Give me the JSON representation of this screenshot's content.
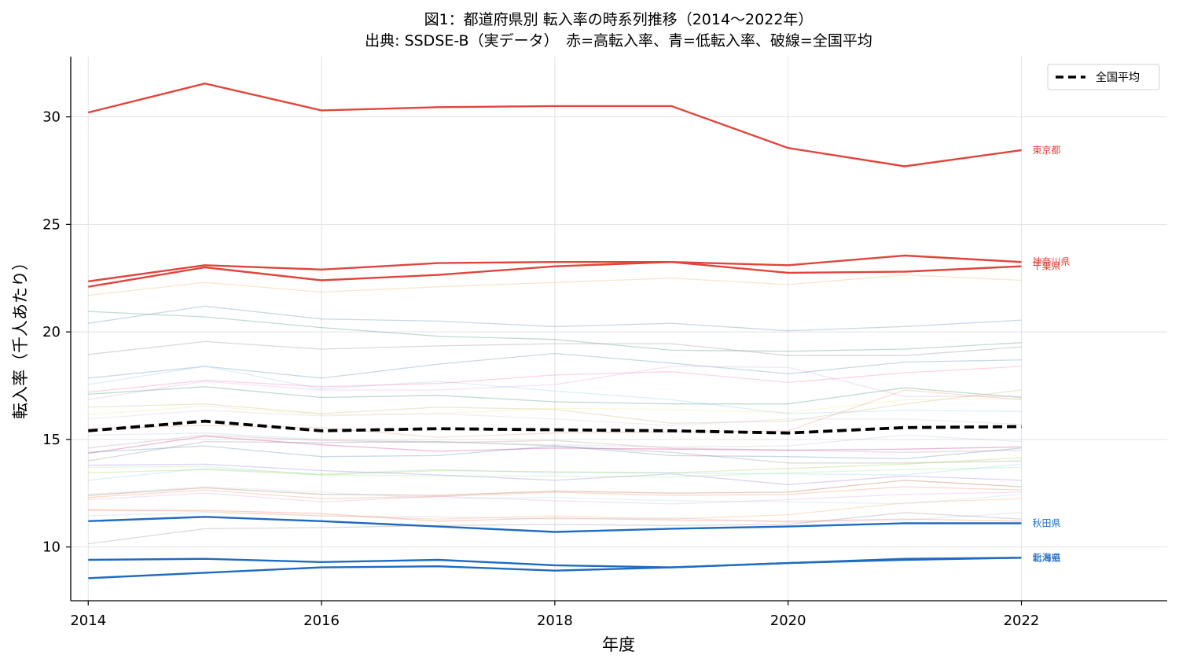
{
  "chart_data": {
    "type": "line",
    "title": "図1：都道府県別 転入率の時系列推移（2014〜2022年）",
    "subtitle": "出典: SSDSE-B（実データ）　赤=高転入率、青=低転入率、破線=全国平均",
    "xlabel": "年度",
    "ylabel": "転入率（千人あたり）",
    "x": [
      2014,
      2015,
      2016,
      2017,
      2018,
      2019,
      2020,
      2021,
      2022
    ],
    "xlim": [
      2013.85,
      2023.25
    ],
    "ylim": [
      7.5,
      32.8
    ],
    "xticks": [
      2014,
      2016,
      2018,
      2020,
      2022
    ],
    "yticks": [
      10,
      15,
      20,
      25,
      30
    ],
    "grid": true,
    "legend": {
      "position": "top-right",
      "entries": [
        {
          "label": "全国平均",
          "style": "dashed",
          "color": "#000000"
        }
      ]
    },
    "colors": {
      "high": "#e0453c",
      "low": "#1f6bc1",
      "average": "#000000"
    },
    "highlight_series": [
      {
        "name": "東京都",
        "group": "high",
        "values": [
          30.2,
          31.55,
          30.3,
          30.45,
          30.5,
          30.5,
          28.55,
          27.7,
          28.45
        ]
      },
      {
        "name": "神奈川県",
        "group": "high",
        "values": [
          22.35,
          23.1,
          22.9,
          23.2,
          23.25,
          23.25,
          23.1,
          23.55,
          23.25
        ]
      },
      {
        "name": "千葉県",
        "group": "high",
        "values": [
          22.1,
          23.0,
          22.4,
          22.65,
          23.05,
          23.25,
          22.75,
          22.8,
          23.05
        ]
      },
      {
        "name": "秋田県",
        "group": "low",
        "values": [
          11.2,
          11.4,
          11.2,
          10.95,
          10.7,
          10.85,
          10.95,
          11.1,
          11.1
        ]
      },
      {
        "name": "新潟県",
        "group": "low",
        "values": [
          9.4,
          9.45,
          9.3,
          9.4,
          9.15,
          9.05,
          9.25,
          9.45,
          9.5
        ]
      },
      {
        "name": "北海道",
        "group": "low",
        "values": [
          8.55,
          8.8,
          9.05,
          9.1,
          8.9,
          9.05,
          9.25,
          9.4,
          9.5
        ]
      }
    ],
    "average_series": {
      "name": "全国平均",
      "values": [
        15.4,
        15.85,
        15.4,
        15.5,
        15.45,
        15.4,
        15.3,
        15.55,
        15.6
      ]
    },
    "background_series": [
      {
        "color": "#f4a460",
        "values": [
          21.7,
          22.3,
          21.85,
          22.1,
          22.3,
          22.5,
          22.2,
          22.65,
          22.4
        ]
      },
      {
        "color": "#4682b4",
        "values": [
          20.4,
          21.2,
          20.6,
          20.5,
          20.25,
          20.4,
          20.05,
          20.25,
          20.55
        ]
      },
      {
        "color": "#2e8b57",
        "values": [
          20.95,
          20.7,
          20.2,
          19.8,
          19.65,
          19.15,
          19.1,
          19.2,
          19.5
        ]
      },
      {
        "color": "#808080",
        "values": [
          18.95,
          19.55,
          19.2,
          19.35,
          19.45,
          19.45,
          18.9,
          18.9,
          19.3
        ]
      },
      {
        "color": "#4682b4",
        "values": [
          17.85,
          18.4,
          17.85,
          18.5,
          19.0,
          18.55,
          18.05,
          18.6,
          18.7
        ]
      },
      {
        "color": "#87ceeb",
        "values": [
          17.55,
          18.4,
          17.35,
          17.7,
          17.25,
          16.85,
          16.2,
          16.35,
          16.3
        ]
      },
      {
        "color": "#ff69b4",
        "values": [
          17.2,
          17.75,
          17.45,
          17.6,
          18.0,
          18.15,
          17.65,
          18.1,
          18.4
        ]
      },
      {
        "color": "#2e8b57",
        "values": [
          17.1,
          17.45,
          16.95,
          17.05,
          16.75,
          16.65,
          16.65,
          17.4,
          16.95
        ]
      },
      {
        "color": "#dda0dd",
        "values": [
          16.85,
          17.7,
          17.3,
          17.3,
          17.55,
          18.4,
          18.35,
          17.0,
          17.0
        ]
      },
      {
        "color": "#bdb76b",
        "values": [
          16.5,
          16.65,
          16.2,
          16.5,
          16.4,
          15.75,
          15.85,
          16.65,
          17.3
        ]
      },
      {
        "color": "#f0e68c",
        "values": [
          16.15,
          16.55,
          16.15,
          16.2,
          16.45,
          16.4,
          16.25,
          16.85,
          16.9
        ]
      },
      {
        "color": "#d8bfd8",
        "values": [
          15.95,
          16.35,
          16.1,
          16.2,
          15.95,
          15.65,
          15.95,
          15.95,
          15.7
        ]
      },
      {
        "color": "#e9967a",
        "values": [
          15.5,
          15.65,
          15.55,
          15.1,
          15.3,
          15.35,
          15.4,
          17.3,
          16.85
        ]
      },
      {
        "color": "#b0c4de",
        "values": [
          15.2,
          15.3,
          15.0,
          14.9,
          14.75,
          14.65,
          14.7,
          15.2,
          14.9
        ]
      },
      {
        "color": "#bc8f8f",
        "values": [
          14.6,
          15.2,
          14.95,
          14.85,
          14.95,
          14.6,
          14.5,
          14.4,
          14.5
        ]
      },
      {
        "color": "#c71585",
        "values": [
          14.35,
          15.15,
          14.75,
          14.45,
          14.6,
          14.55,
          14.5,
          14.55,
          14.65
        ]
      },
      {
        "color": "#4682b4",
        "values": [
          14.4,
          14.7,
          14.2,
          14.25,
          14.7,
          14.25,
          14.2,
          14.1,
          14.6
        ]
      },
      {
        "color": "#808080",
        "values": [
          14.0,
          14.9,
          14.85,
          14.9,
          14.7,
          14.4,
          13.9,
          13.9,
          14.0
        ]
      },
      {
        "color": "#9acd32",
        "values": [
          13.45,
          13.6,
          13.35,
          13.55,
          13.5,
          13.45,
          13.65,
          13.85,
          14.15
        ]
      },
      {
        "color": "#87ceeb",
        "values": [
          13.1,
          13.65,
          13.4,
          13.6,
          13.45,
          13.45,
          13.4,
          13.35,
          13.85
        ]
      },
      {
        "color": "#90ee90",
        "values": [
          13.7,
          13.75,
          13.35,
          13.3,
          13.3,
          13.25,
          13.45,
          13.6,
          13.7
        ]
      },
      {
        "color": "#9370db",
        "values": [
          13.8,
          13.85,
          13.55,
          13.35,
          13.1,
          13.4,
          12.9,
          13.3,
          13.1
        ]
      },
      {
        "color": "#a0522d",
        "values": [
          12.4,
          12.75,
          12.45,
          12.4,
          12.6,
          12.5,
          12.55,
          13.1,
          12.8
        ]
      },
      {
        "color": "#ff7f50",
        "values": [
          12.3,
          12.65,
          12.25,
          12.35,
          12.55,
          12.4,
          12.45,
          12.8,
          12.65
        ]
      },
      {
        "color": "#dda0dd",
        "values": [
          12.2,
          12.5,
          12.1,
          12.35,
          12.15,
          12.0,
          12.2,
          12.45,
          12.55
        ]
      },
      {
        "color": "#add8e6",
        "values": [
          12.45,
          12.8,
          12.55,
          12.25,
          12.3,
          12.15,
          12.1,
          12.0,
          12.45
        ]
      },
      {
        "color": "#f4a460",
        "values": [
          11.75,
          11.65,
          11.45,
          11.3,
          11.45,
          11.3,
          11.5,
          12.05,
          12.25
        ]
      },
      {
        "color": "#ff6347",
        "values": [
          11.7,
          11.7,
          11.55,
          11.2,
          11.35,
          11.25,
          11.2,
          11.3,
          11.2
        ]
      },
      {
        "color": "#b0c4de",
        "values": [
          11.45,
          11.6,
          11.45,
          11.4,
          11.3,
          11.35,
          11.15,
          11.25,
          11.6
        ]
      },
      {
        "color": "#808080",
        "values": [
          10.15,
          10.85,
          10.9,
          11.0,
          11.05,
          11.0,
          11.05,
          11.6,
          11.3
        ]
      }
    ]
  }
}
